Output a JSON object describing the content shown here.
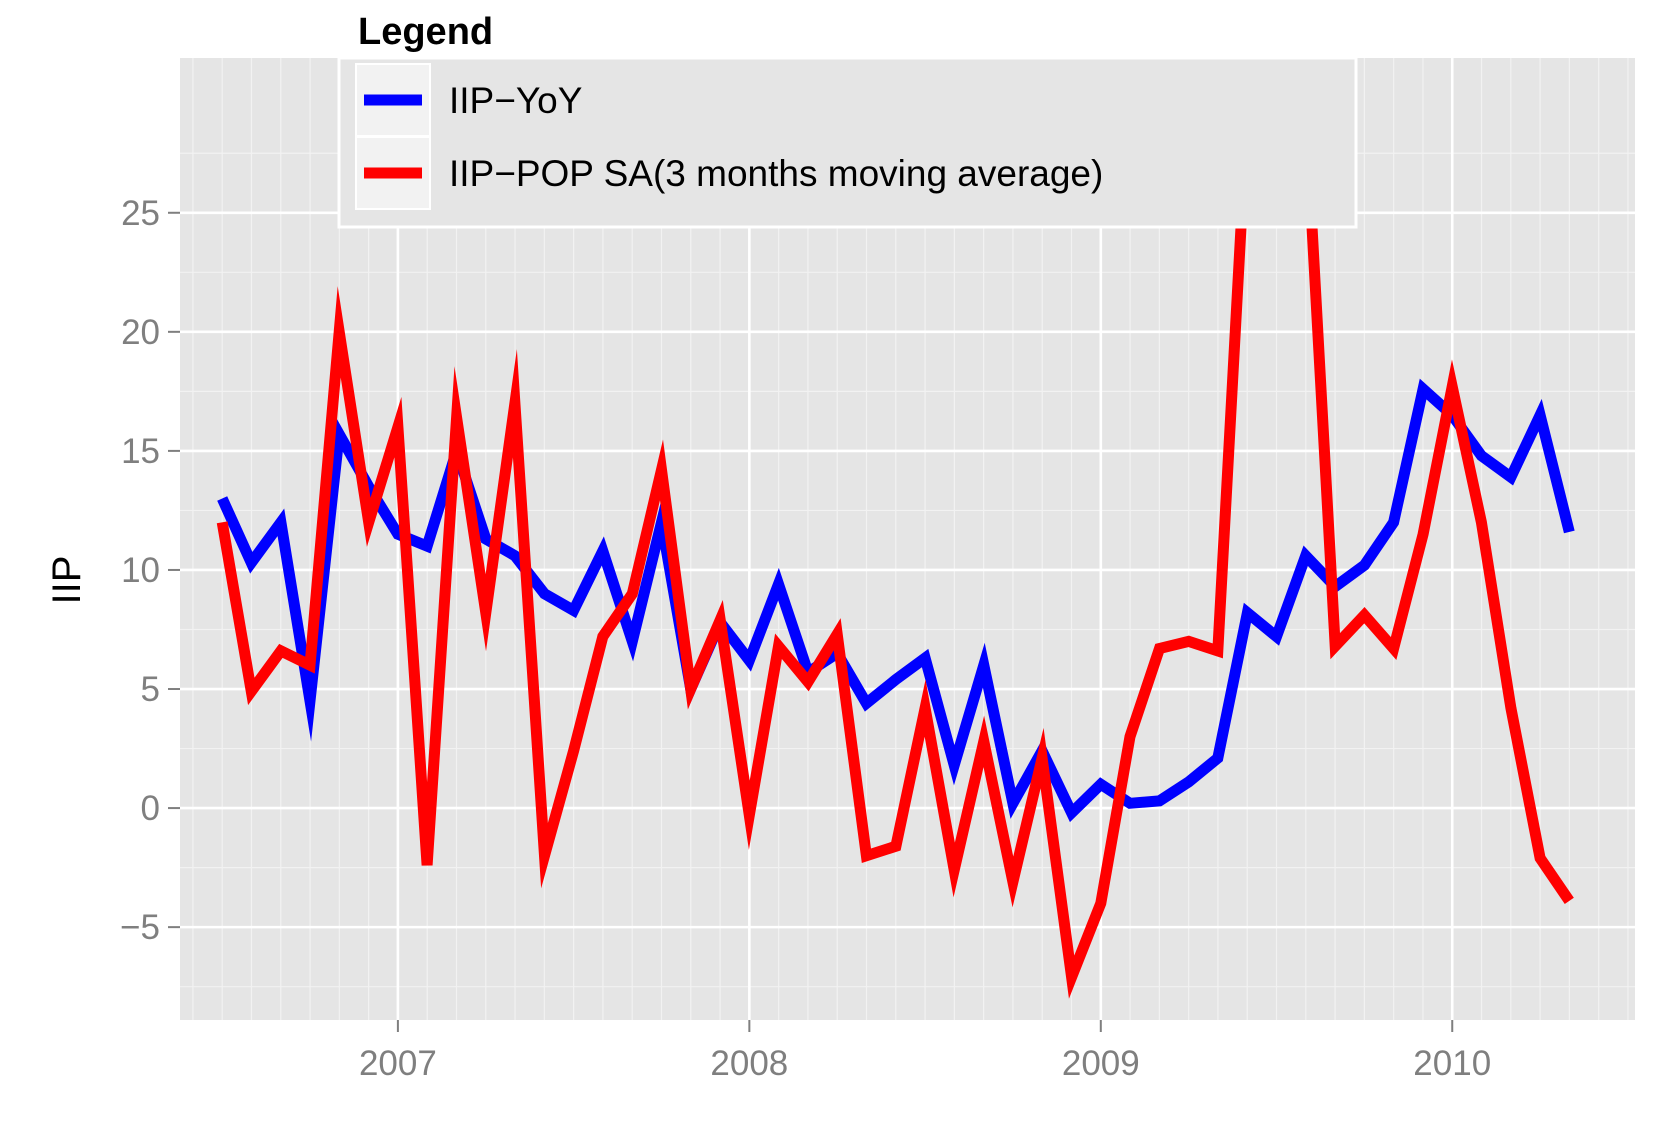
{
  "colors": {
    "panel_bg": "#e5e5e5",
    "grid_major": "#ffffff",
    "grid_minor": "#f2f2f2",
    "tick_text": "#7f7f7f"
  },
  "chart_data": {
    "type": "line",
    "title": "",
    "xlabel": "",
    "ylabel": "IIP",
    "xlim": [
      2006.38,
      2010.52
    ],
    "ylim": [
      -8.9,
      31.5
    ],
    "x_ticks": [
      2007,
      2008,
      2009,
      2010
    ],
    "x_tick_labels": [
      "2007",
      "2008",
      "2009",
      "2010"
    ],
    "y_ticks": [
      -5,
      0,
      5,
      10,
      15,
      20,
      25
    ],
    "y_tick_labels": [
      "−5",
      "0",
      "5",
      "10",
      "15",
      "20",
      "25"
    ],
    "grid": true,
    "legend": {
      "title": "Legend",
      "position": "top"
    },
    "x": [
      2006.5,
      2006.583,
      2006.667,
      2006.75,
      2006.833,
      2006.917,
      2007.0,
      2007.083,
      2007.167,
      2007.25,
      2007.333,
      2007.417,
      2007.5,
      2007.583,
      2007.667,
      2007.75,
      2007.833,
      2007.917,
      2008.0,
      2008.083,
      2008.167,
      2008.25,
      2008.333,
      2008.417,
      2008.5,
      2008.583,
      2008.667,
      2008.75,
      2008.833,
      2008.917,
      2009.0,
      2009.083,
      2009.167,
      2009.25,
      2009.333,
      2009.417,
      2009.5,
      2009.583,
      2009.667,
      2009.75,
      2009.833,
      2009.917,
      2010.0,
      2010.083,
      2010.167,
      2010.25,
      2010.333
    ],
    "series": [
      {
        "name": "IIP−YoY",
        "color": "#0000ff",
        "values": [
          13.0,
          10.3,
          12.0,
          4.5,
          15.7,
          13.5,
          11.5,
          11.0,
          15.0,
          11.3,
          10.6,
          9.0,
          8.3,
          10.8,
          7.0,
          12.0,
          5.0,
          7.8,
          6.2,
          9.4,
          5.7,
          6.5,
          4.4,
          5.4,
          6.3,
          1.8,
          6.0,
          0.2,
          2.4,
          -0.2,
          1.0,
          0.2,
          0.3,
          1.1,
          2.1,
          8.2,
          7.2,
          10.6,
          9.3,
          10.2,
          12.0,
          17.6,
          16.5,
          14.8,
          13.9,
          16.5,
          11.6
        ]
      },
      {
        "name": "IIP−POP SA(3 months moving average)",
        "color": "#ff0000",
        "values": [
          12.0,
          4.9,
          6.6,
          6.0,
          20.0,
          12.0,
          16.0,
          -2.4,
          16.4,
          8.2,
          17.0,
          -2.0,
          2.4,
          7.2,
          9.0,
          14.2,
          5.0,
          7.9,
          -0.3,
          6.8,
          5.3,
          7.3,
          -2.0,
          -1.6,
          4.2,
          -2.6,
          2.8,
          -3.1,
          2.1,
          -7.1,
          -4.0,
          3.0,
          6.7,
          7.0,
          6.6,
          29.3,
          27.8,
          29.2,
          6.8,
          8.1,
          6.7,
          11.5,
          17.7,
          12.0,
          4.2,
          -2.1,
          -3.9
        ]
      }
    ]
  }
}
